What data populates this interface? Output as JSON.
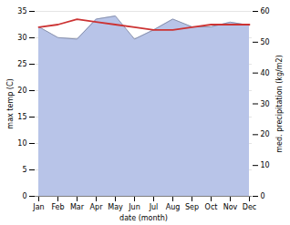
{
  "chart_data": {
    "type": "line",
    "xlabel": "date (month)",
    "ylabel": "max temp (C)",
    "y2label": "med. precipitation (kg/m2)",
    "categories": [
      "Jan",
      "Feb",
      "Mar",
      "Apr",
      "May",
      "Jun",
      "Jul",
      "Aug",
      "Sep",
      "Oct",
      "Nov",
      "Dec"
    ],
    "series": [
      {
        "type": "area",
        "axis": "y2",
        "color": "#b8c4e8",
        "values": [
          55.0,
          51.5,
          51.0,
          57.5,
          58.5,
          51.0,
          54.0,
          57.5,
          55.0,
          55.0,
          56.5,
          55.5
        ]
      },
      {
        "type": "line",
        "color": "#cc3333",
        "values": [
          32.0,
          32.5,
          33.5,
          33.0,
          32.5,
          32.0,
          31.5,
          31.5,
          32.0,
          32.5,
          32.5,
          32.5
        ]
      }
    ],
    "ylim": [
      0,
      35
    ],
    "yticks": [
      0,
      5,
      10,
      15,
      20,
      25,
      30,
      35
    ],
    "y2lim": [
      0,
      60
    ],
    "y2ticks": [
      0,
      10,
      20,
      30,
      40,
      50,
      60
    ],
    "grid": true
  }
}
